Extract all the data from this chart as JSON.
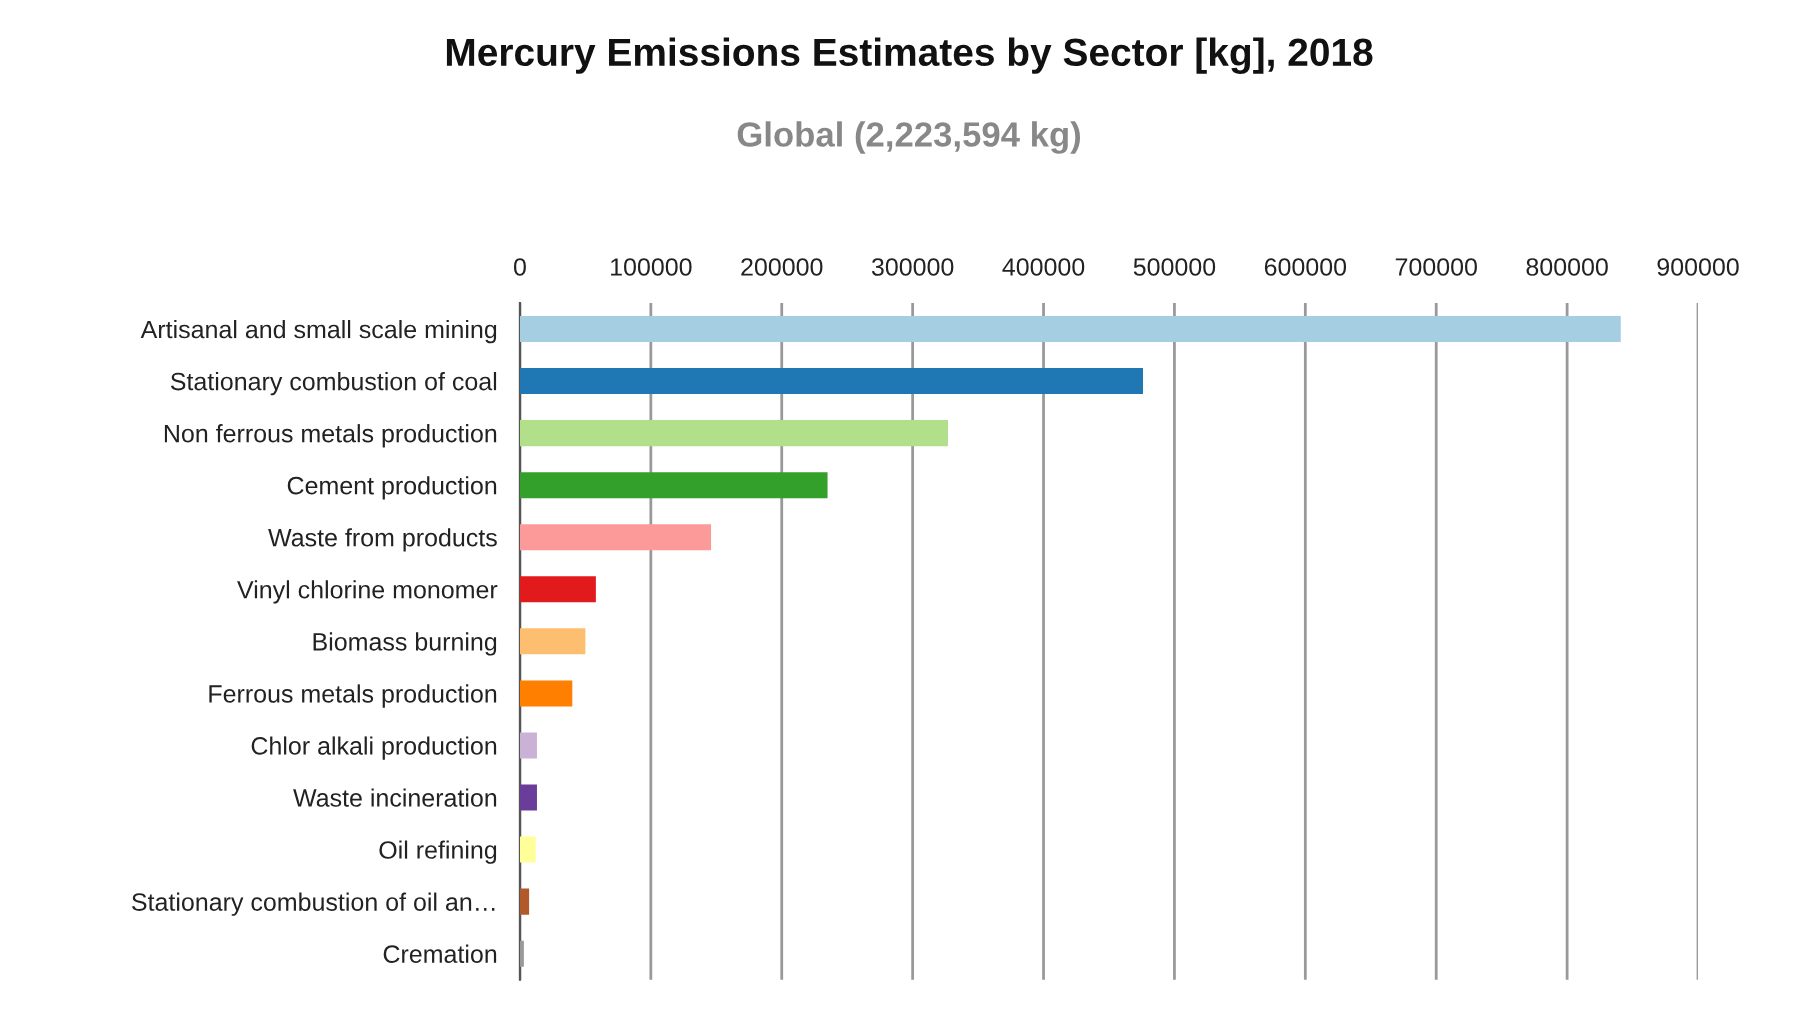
{
  "chart_data": {
    "type": "bar",
    "orientation": "horizontal",
    "title": "Mercury Emissions Estimates by Sector [kg], 2018",
    "subtitle": "Global (2,223,594 kg)",
    "categories": [
      "Artisanal and small scale mining",
      "Stationary combustion of coal",
      "Non ferrous metals production",
      "Cement production",
      "Waste from products",
      "Vinyl chlorine monomer",
      "Biomass burning",
      "Ferrous metals production",
      "Chlor alkali production",
      "Waste incineration",
      "Oil refining",
      "Stationary combustion of oil an…",
      "Cremation"
    ],
    "values": [
      841000,
      476000,
      327000,
      235000,
      146000,
      58000,
      50000,
      40000,
      13000,
      13000,
      12000,
      7000,
      3000
    ],
    "colors": [
      "#a6cee3",
      "#1f78b4",
      "#b2df8a",
      "#33a02c",
      "#fb9a99",
      "#e31a1c",
      "#fdbf6f",
      "#ff7f00",
      "#cab2d6",
      "#6a3d9a",
      "#ffff99",
      "#b15928",
      "#999999"
    ],
    "xlim": [
      0,
      900000
    ],
    "xticks": [
      0,
      100000,
      200000,
      300000,
      400000,
      500000,
      600000,
      700000,
      800000,
      900000
    ],
    "grid": "x",
    "legend": false
  }
}
